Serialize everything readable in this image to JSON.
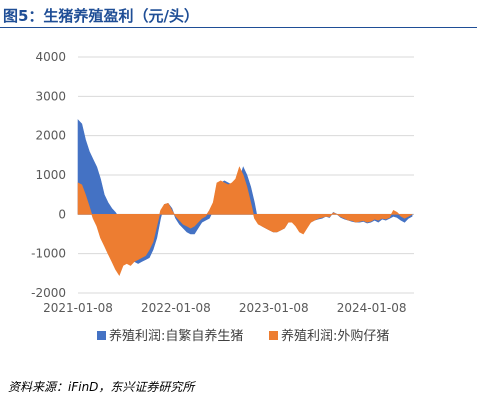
{
  "figure": {
    "title": "图5：生猪养殖盈利（元/头）",
    "source": "资料来源：iFinD，东兴证券研究所"
  },
  "colors": {
    "title": "#1f4e96",
    "self_breeding": "#4472c4",
    "purchased": "#ed7d31",
    "grid": "#d9d9d9",
    "axis": "#bfbfbf"
  },
  "chart_data": {
    "type": "area",
    "ylim": [
      -2000,
      4000
    ],
    "yticks": [
      4000,
      3000,
      2000,
      1000,
      0,
      -1000,
      -2000
    ],
    "ytick_labels": [
      "4000",
      "3000",
      "2000",
      "1000",
      "0",
      "-1000",
      "-2000"
    ],
    "xlim": [
      "2021-01-08",
      "2024-06-14"
    ],
    "xtick_labels": [
      "2021-01-08",
      "2022-01-08",
      "2023-01-08",
      "2024-01-08"
    ],
    "x": [
      "2021-01-08",
      "2021-01-22",
      "2021-02-05",
      "2021-02-19",
      "2021-03-05",
      "2021-03-19",
      "2021-04-02",
      "2021-04-16",
      "2021-04-30",
      "2021-05-14",
      "2021-05-28",
      "2021-06-11",
      "2021-06-25",
      "2021-07-09",
      "2021-07-23",
      "2021-08-06",
      "2021-08-20",
      "2021-09-03",
      "2021-09-17",
      "2021-10-01",
      "2021-10-15",
      "2021-10-29",
      "2021-11-12",
      "2021-11-26",
      "2021-12-10",
      "2021-12-24",
      "2022-01-07",
      "2022-01-21",
      "2022-02-04",
      "2022-02-18",
      "2022-03-04",
      "2022-03-18",
      "2022-04-01",
      "2022-04-15",
      "2022-04-29",
      "2022-05-13",
      "2022-05-27",
      "2022-06-10",
      "2022-06-24",
      "2022-07-08",
      "2022-07-22",
      "2022-08-05",
      "2022-08-19",
      "2022-09-02",
      "2022-09-16",
      "2022-09-30",
      "2022-10-14",
      "2022-10-28",
      "2022-11-11",
      "2022-11-25",
      "2022-12-09",
      "2022-12-23",
      "2023-01-06",
      "2023-01-20",
      "2023-02-03",
      "2023-02-17",
      "2023-03-03",
      "2023-03-17",
      "2023-03-31",
      "2023-04-14",
      "2023-04-28",
      "2023-05-12",
      "2023-05-26",
      "2023-06-09",
      "2023-06-23",
      "2023-07-07",
      "2023-07-21",
      "2023-08-04",
      "2023-08-18",
      "2023-09-01",
      "2023-09-15",
      "2023-09-29",
      "2023-10-13",
      "2023-10-27",
      "2023-11-10",
      "2023-11-24",
      "2023-12-08",
      "2023-12-22",
      "2024-01-05",
      "2024-01-19",
      "2024-02-02",
      "2024-02-16",
      "2024-03-01",
      "2024-03-15",
      "2024-03-29",
      "2024-04-12",
      "2024-04-26",
      "2024-05-10",
      "2024-05-24",
      "2024-06-07"
    ],
    "series": [
      {
        "name": "养殖利润:自繁自养生猪",
        "color": "#4472c4",
        "values": [
          2400,
          2300,
          1900,
          1600,
          1400,
          1200,
          900,
          500,
          300,
          150,
          50,
          -100,
          -500,
          -900,
          -1100,
          -1200,
          -1250,
          -1200,
          -1150,
          -1100,
          -900,
          -600,
          -100,
          250,
          280,
          150,
          -100,
          -250,
          -350,
          -450,
          -500,
          -500,
          -350,
          -200,
          -150,
          -100,
          100,
          400,
          800,
          850,
          800,
          750,
          800,
          900,
          1200,
          1000,
          700,
          300,
          -200,
          -300,
          -350,
          -400,
          -450,
          -450,
          -400,
          -350,
          -200,
          -150,
          -250,
          -380,
          -400,
          -300,
          -200,
          -150,
          -120,
          -100,
          -50,
          -80,
          50,
          0,
          -80,
          -120,
          -150,
          -180,
          -200,
          -200,
          -180,
          -220,
          -200,
          -150,
          -200,
          -120,
          -150,
          -100,
          -50,
          -80,
          -150,
          -200,
          -100,
          -50
        ]
      },
      {
        "name": "养殖利润:外购仔猪",
        "color": "#ed7d31",
        "values": [
          800,
          750,
          500,
          200,
          -100,
          -300,
          -600,
          -800,
          -1000,
          -1200,
          -1400,
          -1550,
          -1300,
          -1250,
          -1300,
          -1200,
          -1150,
          -1100,
          -1050,
          -900,
          -700,
          -300,
          100,
          250,
          280,
          100,
          -50,
          -150,
          -250,
          -300,
          -350,
          -300,
          -200,
          -100,
          -50,
          100,
          300,
          800,
          850,
          800,
          750,
          800,
          900,
          1200,
          1000,
          700,
          300,
          -100,
          -250,
          -300,
          -350,
          -400,
          -450,
          -450,
          -400,
          -350,
          -200,
          -200,
          -300,
          -450,
          -500,
          -350,
          -200,
          -150,
          -100,
          -80,
          -50,
          -60,
          40,
          0,
          -60,
          -100,
          -150,
          -160,
          -200,
          -180,
          -160,
          -200,
          -180,
          -120,
          -150,
          -100,
          -120,
          -80,
          100,
          50,
          -50,
          -100,
          -50,
          0
        ]
      }
    ],
    "grid": true,
    "legend_position": "bottom",
    "legend": [
      "养殖利润:自繁自养生猪",
      "养殖利润:外购仔猪"
    ]
  }
}
